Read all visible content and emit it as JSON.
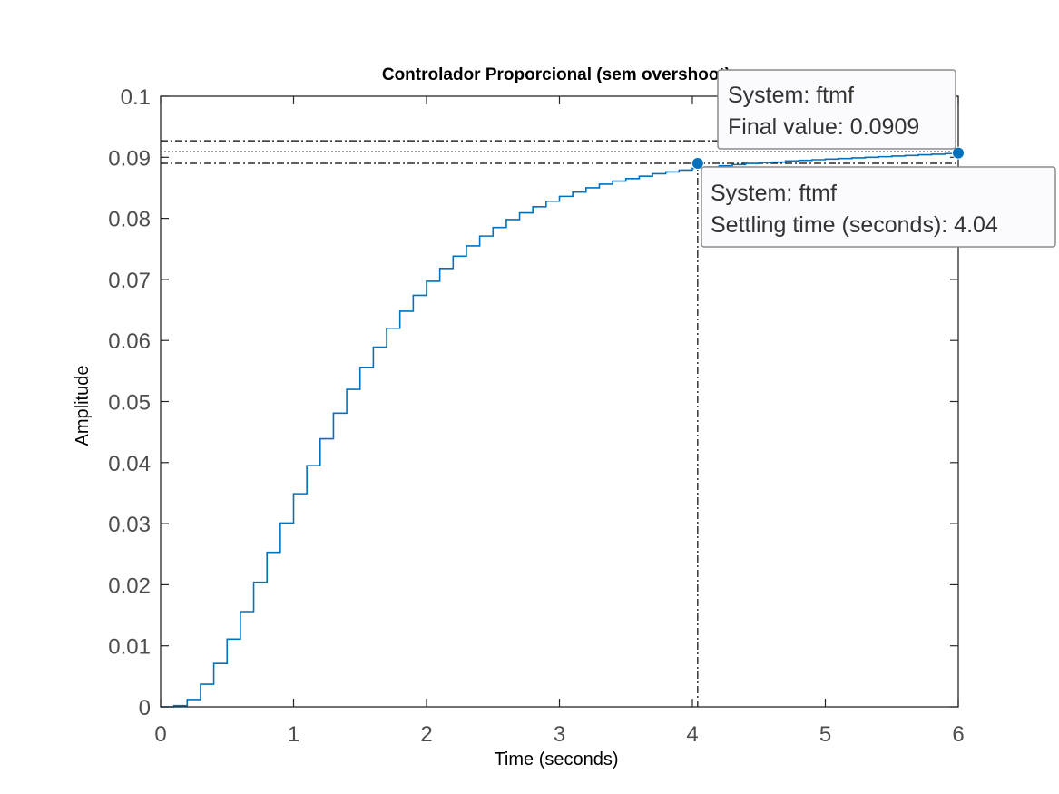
{
  "chart_data": {
    "type": "line",
    "title": "Controlador Proporcional (sem overshoot)",
    "xlabel": "Time (seconds)",
    "ylabel": "Amplitude",
    "xlim": [
      0,
      6
    ],
    "ylim": [
      0,
      0.1
    ],
    "x_ticks": [
      0,
      1,
      2,
      3,
      4,
      5,
      6
    ],
    "x_tick_labels": [
      "0",
      "1",
      "2",
      "3",
      "4",
      "5",
      "6"
    ],
    "y_ticks": [
      0,
      0.01,
      0.02,
      0.03,
      0.04,
      0.05,
      0.06,
      0.07,
      0.08,
      0.09,
      0.1
    ],
    "y_tick_labels": [
      "0",
      "0.01",
      "0.02",
      "0.03",
      "0.04",
      "0.05",
      "0.06",
      "0.07",
      "0.08",
      "0.09",
      "0.1"
    ],
    "grid": false,
    "series": [
      {
        "name": "ftmf",
        "color": "#0072BD",
        "step": true,
        "sample_time": 0.1,
        "x": [
          0,
          0.1,
          0.2,
          0.3,
          0.4,
          0.5,
          0.6,
          0.7,
          0.8,
          0.9,
          1.0,
          1.1,
          1.2,
          1.3,
          1.4,
          1.5,
          1.6,
          1.7,
          1.8,
          1.9,
          2.0,
          2.1,
          2.2,
          2.3,
          2.4,
          2.5,
          2.6,
          2.7,
          2.8,
          2.9,
          3.0,
          3.1,
          3.2,
          3.3,
          3.4,
          3.5,
          3.6,
          3.7,
          3.8,
          3.9,
          4.0,
          4.1,
          4.2,
          4.3,
          4.4,
          4.5,
          4.6,
          4.7,
          4.8,
          4.9,
          5.0,
          5.1,
          5.2,
          5.3,
          5.4,
          5.5,
          5.6,
          5.7,
          5.8,
          5.9,
          6.0
        ],
        "y": [
          0,
          0.0002,
          0.0012,
          0.0037,
          0.0071,
          0.0111,
          0.0156,
          0.0204,
          0.0253,
          0.0301,
          0.0349,
          0.0395,
          0.0439,
          0.0481,
          0.052,
          0.0556,
          0.0589,
          0.062,
          0.0648,
          0.0674,
          0.0697,
          0.0718,
          0.0738,
          0.0755,
          0.0771,
          0.0785,
          0.0798,
          0.0809,
          0.0819,
          0.0828,
          0.0836,
          0.0843,
          0.085,
          0.0856,
          0.0861,
          0.0865,
          0.0869,
          0.0873,
          0.0876,
          0.0879,
          0.0882,
          0.0884,
          0.0886,
          0.0888,
          0.089,
          0.0891,
          0.0892,
          0.0894,
          0.0895,
          0.0896,
          0.0897,
          0.0898,
          0.0899,
          0.09,
          0.0901,
          0.0902,
          0.0903,
          0.0904,
          0.0905,
          0.0906,
          0.0907
        ]
      }
    ],
    "reference_lines": {
      "final_value": 0.0909,
      "settling_band_upper": 0.0927,
      "settling_band_lower": 0.089,
      "settling_time": 4.04
    },
    "datatips": [
      {
        "id": "final",
        "x": 6.0,
        "y": 0.0907,
        "line1": "System: ftmf",
        "line2": "Final value: 0.0909"
      },
      {
        "id": "settling",
        "x": 4.04,
        "y": 0.089,
        "line1": "System: ftmf",
        "line2": "Settling time (seconds): 4.04"
      }
    ]
  }
}
